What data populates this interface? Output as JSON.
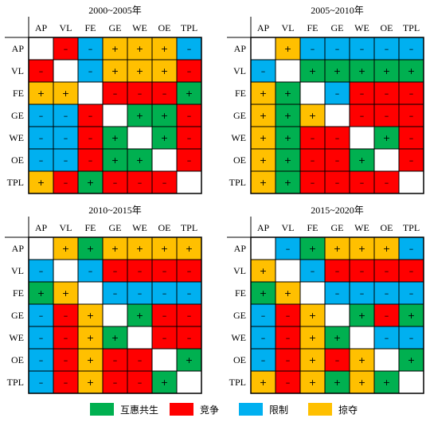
{
  "chart_data": [
    {
      "type": "heatmap",
      "title": "2000~2005年",
      "labels": [
        "AP",
        "VL",
        "FE",
        "GE",
        "WE",
        "OE",
        "TPL"
      ],
      "matrix": [
        [
          "",
          "-",
          "-",
          "+",
          "+",
          "+",
          "-"
        ],
        [
          "-",
          "",
          "-",
          "+",
          "+",
          "+",
          "-"
        ],
        [
          "+",
          "+",
          "",
          "-",
          "-",
          "-",
          "+"
        ],
        [
          "-",
          "-",
          "-",
          "",
          "+",
          "+",
          "-"
        ],
        [
          "-",
          "-",
          "-",
          "+",
          "",
          "+",
          "-"
        ],
        [
          "-",
          "-",
          "-",
          "+",
          "+",
          "",
          "-"
        ],
        [
          "+",
          "-",
          "+",
          "-",
          "-",
          "-",
          ""
        ]
      ],
      "colors": [
        [
          "",
          "red",
          "blue",
          "orange",
          "orange",
          "orange",
          "blue"
        ],
        [
          "red",
          "",
          "blue",
          "orange",
          "orange",
          "orange",
          "red"
        ],
        [
          "orange",
          "orange",
          "",
          "red",
          "red",
          "red",
          "green"
        ],
        [
          "blue",
          "blue",
          "red",
          "",
          "green",
          "green",
          "red"
        ],
        [
          "blue",
          "blue",
          "red",
          "green",
          "",
          "green",
          "red"
        ],
        [
          "blue",
          "blue",
          "red",
          "green",
          "green",
          "",
          "red"
        ],
        [
          "orange",
          "red",
          "green",
          "red",
          "red",
          "red",
          ""
        ]
      ]
    },
    {
      "type": "heatmap",
      "title": "2005~2010年",
      "labels": [
        "AP",
        "VL",
        "FE",
        "GE",
        "WE",
        "OE",
        "TPL"
      ],
      "matrix": [
        [
          "",
          "+",
          "-",
          "-",
          "-",
          "-",
          "-"
        ],
        [
          "-",
          "",
          "+",
          "+",
          "+",
          "+",
          "+"
        ],
        [
          "+",
          "+",
          "",
          "-",
          "-",
          "-",
          "-"
        ],
        [
          "+",
          "+",
          "+",
          "",
          "-",
          "-",
          "-"
        ],
        [
          "+",
          "+",
          "-",
          "-",
          "",
          "+",
          "-"
        ],
        [
          "+",
          "+",
          "-",
          "-",
          "+",
          "",
          "-"
        ],
        [
          "+",
          "+",
          "-",
          "-",
          "-",
          "-",
          ""
        ]
      ],
      "colors": [
        [
          "",
          "orange",
          "blue",
          "blue",
          "blue",
          "blue",
          "blue"
        ],
        [
          "blue",
          "",
          "green",
          "green",
          "green",
          "green",
          "green"
        ],
        [
          "orange",
          "green",
          "",
          "blue",
          "red",
          "red",
          "red"
        ],
        [
          "orange",
          "green",
          "orange",
          "",
          "red",
          "red",
          "red"
        ],
        [
          "orange",
          "green",
          "red",
          "red",
          "",
          "green",
          "red"
        ],
        [
          "orange",
          "green",
          "red",
          "red",
          "green",
          "",
          "red"
        ],
        [
          "orange",
          "green",
          "red",
          "red",
          "red",
          "red",
          ""
        ]
      ]
    },
    {
      "type": "heatmap",
      "title": "2010~2015年",
      "labels": [
        "AP",
        "VL",
        "FE",
        "GE",
        "WE",
        "OE",
        "TPL"
      ],
      "matrix": [
        [
          "",
          "+",
          "+",
          "+",
          "+",
          "+",
          "+"
        ],
        [
          "-",
          "",
          "-",
          "-",
          "-",
          "-",
          "-"
        ],
        [
          "+",
          "+",
          "",
          "-",
          "-",
          "-",
          "-"
        ],
        [
          "-",
          "-",
          "+",
          "",
          "+",
          "-",
          "-"
        ],
        [
          "-",
          "-",
          "+",
          "+",
          "",
          "-",
          "-"
        ],
        [
          "-",
          "-",
          "+",
          "-",
          "-",
          "",
          "+"
        ],
        [
          "-",
          "-",
          "+",
          "-",
          "-",
          "+",
          ""
        ]
      ],
      "colors": [
        [
          "",
          "orange",
          "green",
          "orange",
          "orange",
          "orange",
          "orange"
        ],
        [
          "blue",
          "",
          "blue",
          "red",
          "red",
          "red",
          "red"
        ],
        [
          "green",
          "orange",
          "",
          "blue",
          "blue",
          "blue",
          "blue"
        ],
        [
          "blue",
          "red",
          "orange",
          "",
          "green",
          "red",
          "red"
        ],
        [
          "blue",
          "red",
          "orange",
          "green",
          "",
          "red",
          "red"
        ],
        [
          "blue",
          "red",
          "orange",
          "red",
          "red",
          "",
          "green"
        ],
        [
          "blue",
          "red",
          "orange",
          "red",
          "red",
          "green",
          ""
        ]
      ]
    },
    {
      "type": "heatmap",
      "title": "2015~2020年",
      "labels": [
        "AP",
        "VL",
        "FE",
        "GE",
        "WE",
        "OE",
        "TPL"
      ],
      "matrix": [
        [
          "",
          "-",
          "+",
          "+",
          "+",
          "+",
          "-"
        ],
        [
          "+",
          "",
          "-",
          "-",
          "-",
          "-",
          "-"
        ],
        [
          "+",
          "+",
          "",
          "-",
          "-",
          "-",
          "-"
        ],
        [
          "-",
          "-",
          "+",
          "",
          "+",
          "-",
          "+"
        ],
        [
          "-",
          "-",
          "+",
          "+",
          "",
          "-",
          "-"
        ],
        [
          "-",
          "-",
          "+",
          "-",
          "+",
          "",
          "+"
        ],
        [
          "+",
          "-",
          "+",
          "+",
          "+",
          "+",
          ""
        ]
      ],
      "colors": [
        [
          "",
          "blue",
          "green",
          "orange",
          "orange",
          "orange",
          "blue"
        ],
        [
          "orange",
          "",
          "blue",
          "red",
          "red",
          "red",
          "red"
        ],
        [
          "green",
          "orange",
          "",
          "blue",
          "blue",
          "blue",
          "blue"
        ],
        [
          "blue",
          "red",
          "orange",
          "",
          "green",
          "red",
          "green"
        ],
        [
          "blue",
          "red",
          "orange",
          "green",
          "",
          "blue",
          "blue"
        ],
        [
          "blue",
          "red",
          "orange",
          "red",
          "orange",
          "",
          "green"
        ],
        [
          "orange",
          "red",
          "orange",
          "green",
          "orange",
          "green",
          ""
        ]
      ]
    }
  ],
  "palette": {
    "green": "#00b050",
    "red": "#ff0000",
    "blue": "#00b0f0",
    "orange": "#ffc000"
  },
  "legend": [
    {
      "color": "green",
      "label": "互惠共生"
    },
    {
      "color": "red",
      "label": "竞争"
    },
    {
      "color": "blue",
      "label": "限制"
    },
    {
      "color": "orange",
      "label": "掠夺"
    }
  ]
}
